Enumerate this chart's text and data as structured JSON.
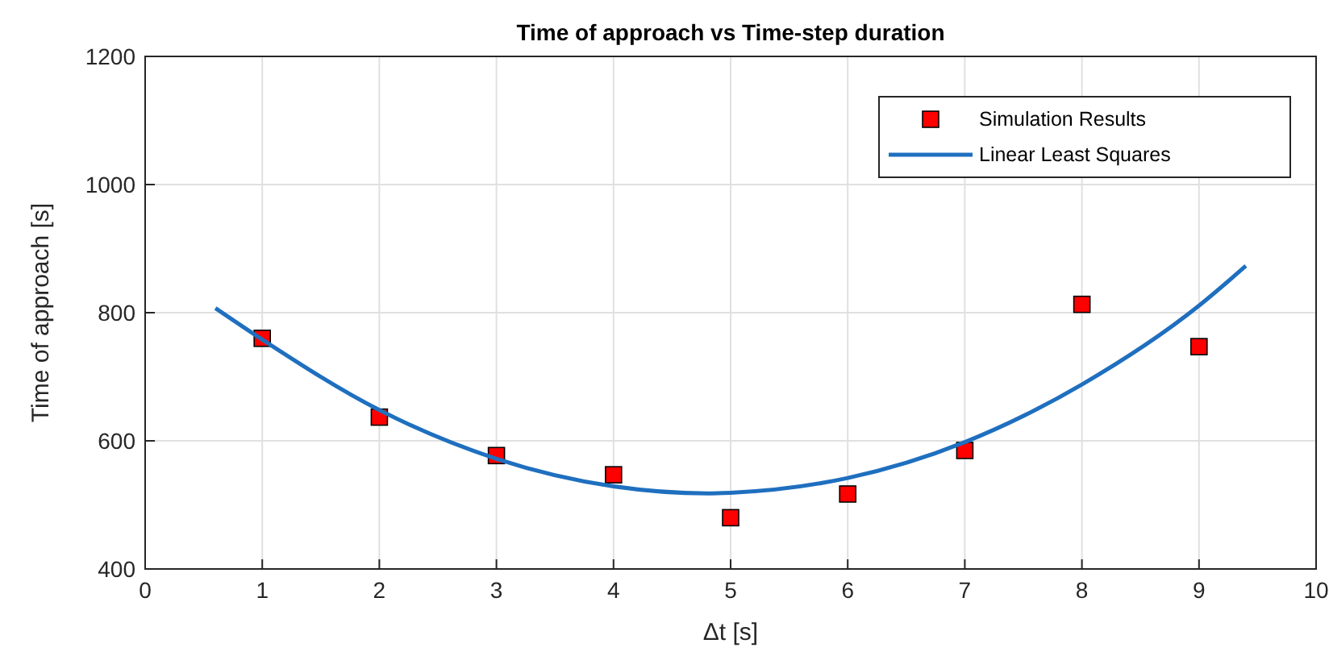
{
  "chart_data": {
    "type": "scatter",
    "title": "Time of approach vs Time-step duration",
    "xlabel": "Δt [s]",
    "ylabel": "Time of approach [s]",
    "xlim": [
      0,
      10
    ],
    "xticks": [
      0,
      1,
      2,
      3,
      4,
      5,
      6,
      7,
      8,
      9,
      10
    ],
    "ylim": [
      400,
      1200
    ],
    "yticks": [
      400,
      600,
      800,
      1000,
      1200
    ],
    "grid": true,
    "legend": "top right",
    "series": [
      {
        "name": "Simulation Results",
        "marker": "square",
        "color": "#ff0000",
        "x": [
          1,
          2,
          3,
          4,
          5,
          6,
          7,
          8,
          9
        ],
        "values": [
          760,
          637,
          577,
          547,
          480,
          517,
          585,
          813,
          747
        ]
      },
      {
        "name": "Linear Least Squares",
        "type": "line",
        "line_style": "solid",
        "color": "#1f6fbf",
        "x": [
          0.6,
          1,
          2,
          3,
          4,
          4.8,
          5,
          6,
          7,
          8,
          9,
          9.4
        ],
        "values": [
          807,
          758,
          648,
          572,
          529,
          518,
          519,
          542,
          598,
          688,
          811,
          873
        ]
      }
    ]
  }
}
